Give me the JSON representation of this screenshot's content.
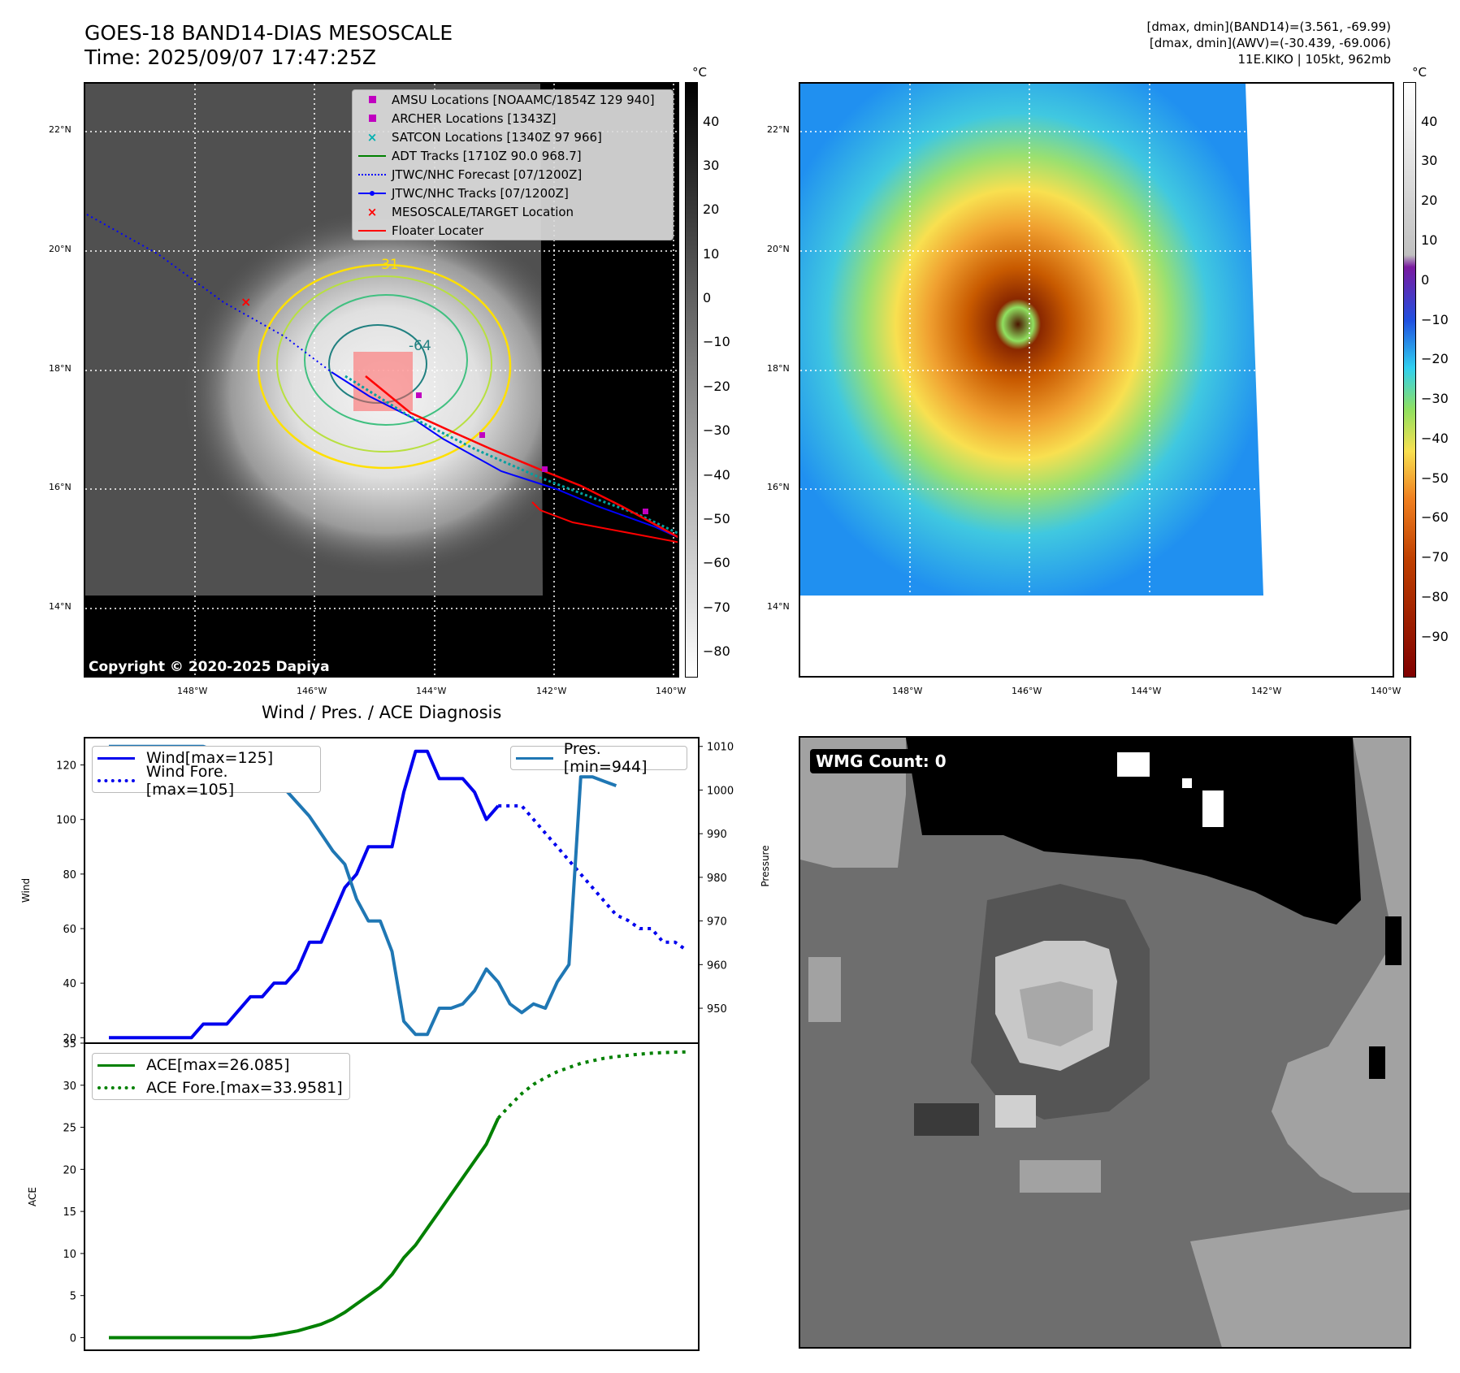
{
  "header": {
    "title_line1": "GOES-18 BAND14-DIAS MESOSCALE",
    "title_line2": "Time: 2025/09/07 17:47:25Z",
    "info_line1": "[dmax, dmin](BAND14)=(3.561, -69.99)",
    "info_line2": "[dmax, dmin](AWV)=(-30.439, -69.006)",
    "info_line3": "11E.KIKO | 105kt, 962mb"
  },
  "map": {
    "lat_labels": [
      "22°N",
      "20°N",
      "18°N",
      "16°N",
      "14°N"
    ],
    "lon_labels": [
      "148°W",
      "146°W",
      "144°W",
      "142°W",
      "140°W"
    ],
    "contour_labels": [
      "-31",
      "-64"
    ],
    "copyright": "Copyright © 2020-2025 Dapiya",
    "legend": [
      {
        "label": "AMSU Locations [NOAAMC/1854Z 129 940]",
        "symbol": "square",
        "color": "#c000c0"
      },
      {
        "label": "ARCHER Locations [1343Z]",
        "symbol": "square",
        "color": "#c000c0"
      },
      {
        "label": "SATCON Locations [1340Z 97 966]",
        "symbol": "x",
        "color": "#00b0b0"
      },
      {
        "label": "ADT Tracks [1710Z 90.0 968.7]",
        "symbol": "line",
        "color": "#008000"
      },
      {
        "label": "JTWC/NHC Forecast [07/1200Z]",
        "symbol": "dotted",
        "color": "#0000ff"
      },
      {
        "label": "JTWC/NHC Tracks [07/1200Z]",
        "symbol": "line-dot",
        "color": "#0000ff"
      },
      {
        "label": "MESOSCALE/TARGET Location",
        "symbol": "x",
        "color": "#ff0000"
      },
      {
        "label": "Floater Locater",
        "symbol": "line",
        "color": "#ff0000"
      }
    ]
  },
  "colorbar_gray": {
    "unit": "°C",
    "ticks": [
      "40",
      "30",
      "20",
      "10",
      "0",
      "−10",
      "−20",
      "−30",
      "−40",
      "−50",
      "−60",
      "−70",
      "−80"
    ]
  },
  "colorbar_color": {
    "unit": "°C",
    "ticks": [
      "40",
      "30",
      "20",
      "10",
      "0",
      "−10",
      "−20",
      "−30",
      "−40",
      "−50",
      "−60",
      "−70",
      "−80",
      "−90"
    ]
  },
  "wmg": {
    "label": "WMG Count: 0"
  },
  "chart_data": [
    {
      "type": "line",
      "title": "Wind / Pres. / ACE Diagnosis",
      "ylabel": "Wind",
      "ylabel_right": "Pressure",
      "ylim": [
        18,
        130
      ],
      "ylim_right": [
        942,
        1012
      ],
      "xlim": [
        0,
        50
      ],
      "yticks": [
        "120",
        "100",
        "80",
        "60",
        "40",
        "20"
      ],
      "yticks_right": [
        "1010",
        "1000",
        "990",
        "980",
        "970",
        "960",
        "950"
      ],
      "legend_left": [
        "Wind[max=125]",
        "Wind Fore.[max=105]"
      ],
      "legend_right": [
        "Pres.[min=944]"
      ],
      "series": [
        {
          "name": "Wind",
          "color": "#0000ee",
          "x": [
            0,
            1,
            2,
            3,
            4,
            5,
            6,
            7,
            8,
            9,
            10,
            11,
            12,
            13,
            14,
            15,
            16,
            17,
            18,
            19,
            20,
            21,
            22,
            23,
            24,
            25,
            26,
            27,
            28,
            29,
            30,
            31,
            32,
            33
          ],
          "values": [
            20,
            20,
            20,
            20,
            20,
            20,
            20,
            20,
            25,
            25,
            25,
            30,
            35,
            35,
            40,
            40,
            45,
            55,
            55,
            65,
            75,
            80,
            90,
            90,
            90,
            110,
            125,
            125,
            115,
            115,
            115,
            110,
            100,
            105
          ]
        },
        {
          "name": "Wind Fore.",
          "color": "#0000ee",
          "x": [
            33,
            34,
            35,
            36,
            37,
            38,
            39,
            40,
            41,
            42,
            43,
            44,
            45,
            46,
            47,
            48,
            49
          ],
          "values": [
            105,
            105,
            105,
            100,
            95,
            90,
            85,
            80,
            75,
            70,
            65,
            63,
            60,
            60,
            55,
            55,
            52
          ]
        },
        {
          "name": "Pres.",
          "color": "#1f77b4",
          "x": [
            0,
            1,
            2,
            3,
            4,
            5,
            6,
            7,
            8,
            9,
            10,
            11,
            12,
            13,
            14,
            15,
            16,
            17,
            18,
            19,
            20,
            21,
            22,
            23,
            24,
            25,
            26,
            27,
            28,
            29,
            30,
            31,
            32,
            33,
            34,
            35,
            36,
            37,
            38,
            39,
            40,
            41,
            42,
            43
          ],
          "values": [
            1010,
            1010,
            1010,
            1010,
            1010,
            1010,
            1010,
            1010,
            1010,
            1009,
            1009,
            1008,
            1006,
            1004,
            1001,
            1000,
            997,
            994,
            990,
            986,
            983,
            975,
            970,
            970,
            963,
            947,
            944,
            944,
            950,
            950,
            951,
            954,
            959,
            956,
            951,
            949,
            951,
            950,
            956,
            960,
            1003,
            1003,
            1002,
            1001
          ]
        }
      ]
    },
    {
      "type": "line",
      "ylabel": "ACE",
      "ylim": [
        -1.5,
        35
      ],
      "xlim": [
        0,
        50
      ],
      "yticks": [
        "35",
        "30",
        "25",
        "20",
        "15",
        "10",
        "5",
        "0"
      ],
      "legend": [
        "ACE[max=26.085]",
        "ACE Fore.[max=33.9581]"
      ],
      "series": [
        {
          "name": "ACE",
          "color": "#008000",
          "x": [
            0,
            4,
            8,
            12,
            14,
            16,
            18,
            19,
            20,
            21,
            22,
            23,
            24,
            25,
            26,
            27,
            28,
            29,
            30,
            31,
            32,
            33
          ],
          "values": [
            0,
            0,
            0,
            0,
            0.3,
            0.8,
            1.6,
            2.2,
            3,
            4,
            5,
            6,
            7.5,
            9.5,
            11,
            13,
            15,
            17,
            19,
            21,
            23,
            26.085
          ]
        },
        {
          "name": "ACE Fore.",
          "color": "#008000",
          "x": [
            33,
            34,
            35,
            36,
            37,
            38,
            39,
            40,
            41,
            42,
            43,
            44,
            45,
            46,
            47,
            48,
            49
          ],
          "values": [
            26.085,
            27.6,
            29,
            30.1,
            30.9,
            31.6,
            32.1,
            32.6,
            32.9,
            33.2,
            33.4,
            33.55,
            33.7,
            33.8,
            33.88,
            33.93,
            33.9581
          ]
        }
      ]
    }
  ]
}
